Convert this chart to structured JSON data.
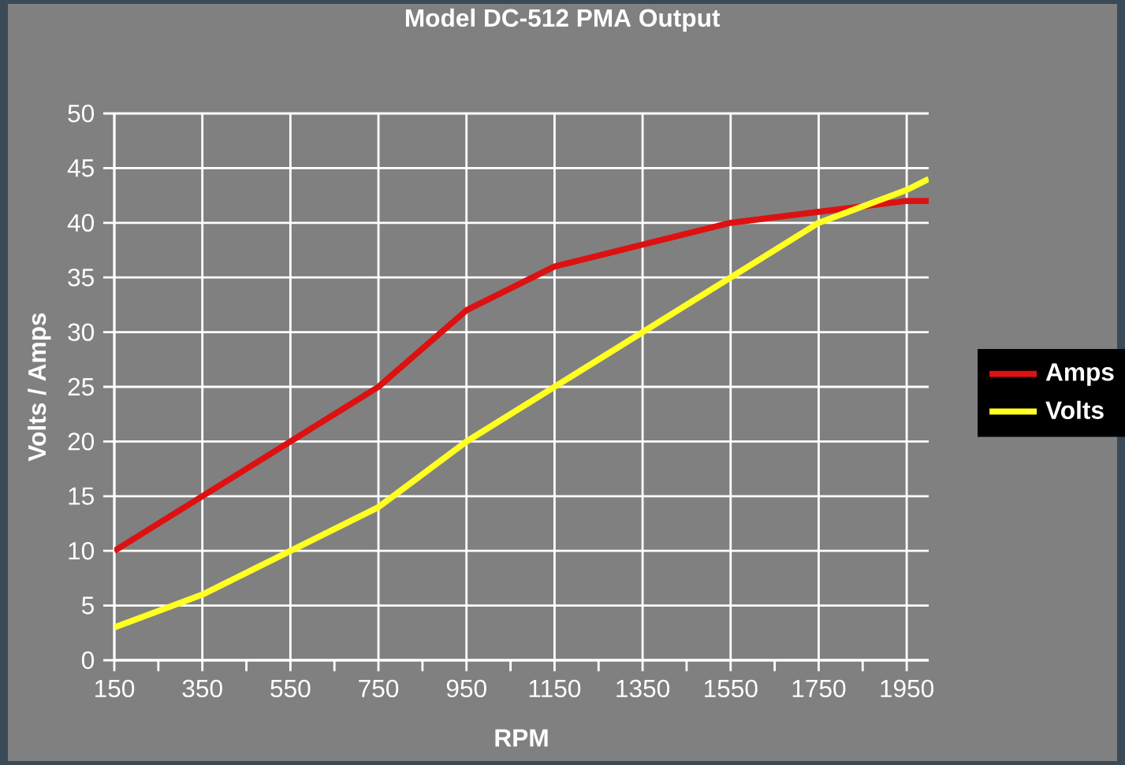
{
  "chart_data": {
    "type": "line",
    "title": "Model DC-512 PMA Output",
    "xlabel": "RPM",
    "ylabel": "Volts / Amps",
    "x": [
      150,
      350,
      550,
      750,
      950,
      1150,
      1350,
      1550,
      1750,
      1950,
      2000
    ],
    "series": [
      {
        "name": "Amps",
        "color": "#dd1111",
        "values": [
          10,
          15,
          20,
          25,
          32,
          36,
          38,
          40,
          41,
          42,
          42
        ]
      },
      {
        "name": "Volts",
        "color": "#ffff22",
        "values": [
          3,
          6,
          10,
          14,
          20,
          25,
          30,
          35,
          40,
          43,
          44
        ]
      }
    ],
    "xlim": [
      150,
      2000
    ],
    "ylim": [
      0,
      50
    ],
    "xticks": [
      150,
      {
        "value": 250,
        "label": null
      },
      350,
      {
        "value": 450,
        "label": null
      },
      550,
      {
        "value": 650,
        "label": null
      },
      750,
      {
        "value": 850,
        "label": null
      },
      950,
      {
        "value": 1050,
        "label": null
      },
      1150,
      {
        "value": 1250,
        "label": null
      },
      1350,
      {
        "value": 1450,
        "label": null
      },
      1550,
      {
        "value": 1650,
        "label": null
      },
      1750,
      {
        "value": 1850,
        "label": null
      },
      1950
    ],
    "yticks": [
      0,
      5,
      10,
      15,
      20,
      25,
      30,
      35,
      40,
      45,
      50
    ],
    "grid": true,
    "legend": "right",
    "marker": "none",
    "line_style": "solid"
  }
}
